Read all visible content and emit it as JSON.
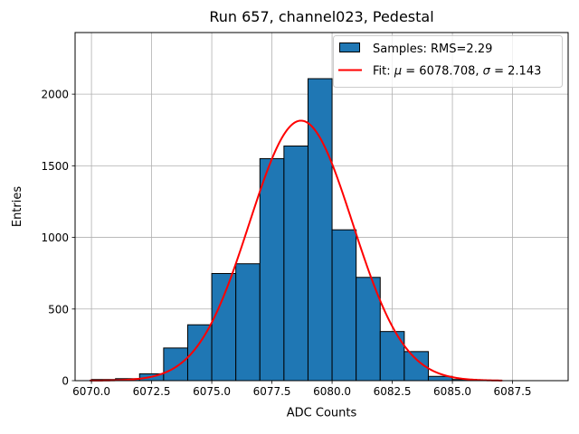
{
  "chart_data": {
    "type": "bar",
    "subtype": "histogram",
    "title": "Run 657, channel023, Pedestal",
    "xlabel": "ADC Counts",
    "ylabel": "Entries",
    "xlim": [
      6069.32,
      6089.81
    ],
    "ylim": [
      0,
      2430
    ],
    "grid": true,
    "xticks": [
      6070.0,
      6072.5,
      6075.0,
      6077.5,
      6080.0,
      6082.5,
      6085.0,
      6087.5
    ],
    "xtick_labels": [
      "6070.0",
      "6072.5",
      "6075.0",
      "6077.5",
      "6080.0",
      "6082.5",
      "6085.0",
      "6087.5"
    ],
    "yticks": [
      0,
      500,
      1000,
      1500,
      2000
    ],
    "ytick_labels": [
      "0",
      "500",
      "1000",
      "1500",
      "2000"
    ],
    "bin_edges": [
      6070,
      6071,
      6072,
      6073,
      6074,
      6075,
      6076,
      6077,
      6078,
      6079,
      6080,
      6081,
      6082,
      6083,
      6084,
      6085,
      6086
    ],
    "counts": [
      8,
      14,
      48,
      228,
      390,
      748,
      816,
      1550,
      1638,
      2108,
      1053,
      721,
      343,
      203,
      30,
      8
    ],
    "fit": {
      "type": "gaussian",
      "mu": 6078.708,
      "sigma": 2.143,
      "amplitude": 1815,
      "x_range": [
        6069.95,
        6087.1
      ]
    },
    "legend": {
      "position": "upper right",
      "entries": [
        {
          "type": "patch",
          "label": "Samples: RMS=2.29",
          "color": "#1f77b4"
        },
        {
          "type": "line",
          "label": "Fit: μ = 6078.708, σ = 2.143",
          "color": "#ff0000"
        }
      ]
    },
    "colors": {
      "bar_fill": "#1f77b4",
      "bar_edge": "#000000",
      "fit_line": "#ff0000",
      "grid": "#b0b0b0",
      "spine": "#000000",
      "background": "#ffffff",
      "legend_border": "#cccccc"
    }
  }
}
